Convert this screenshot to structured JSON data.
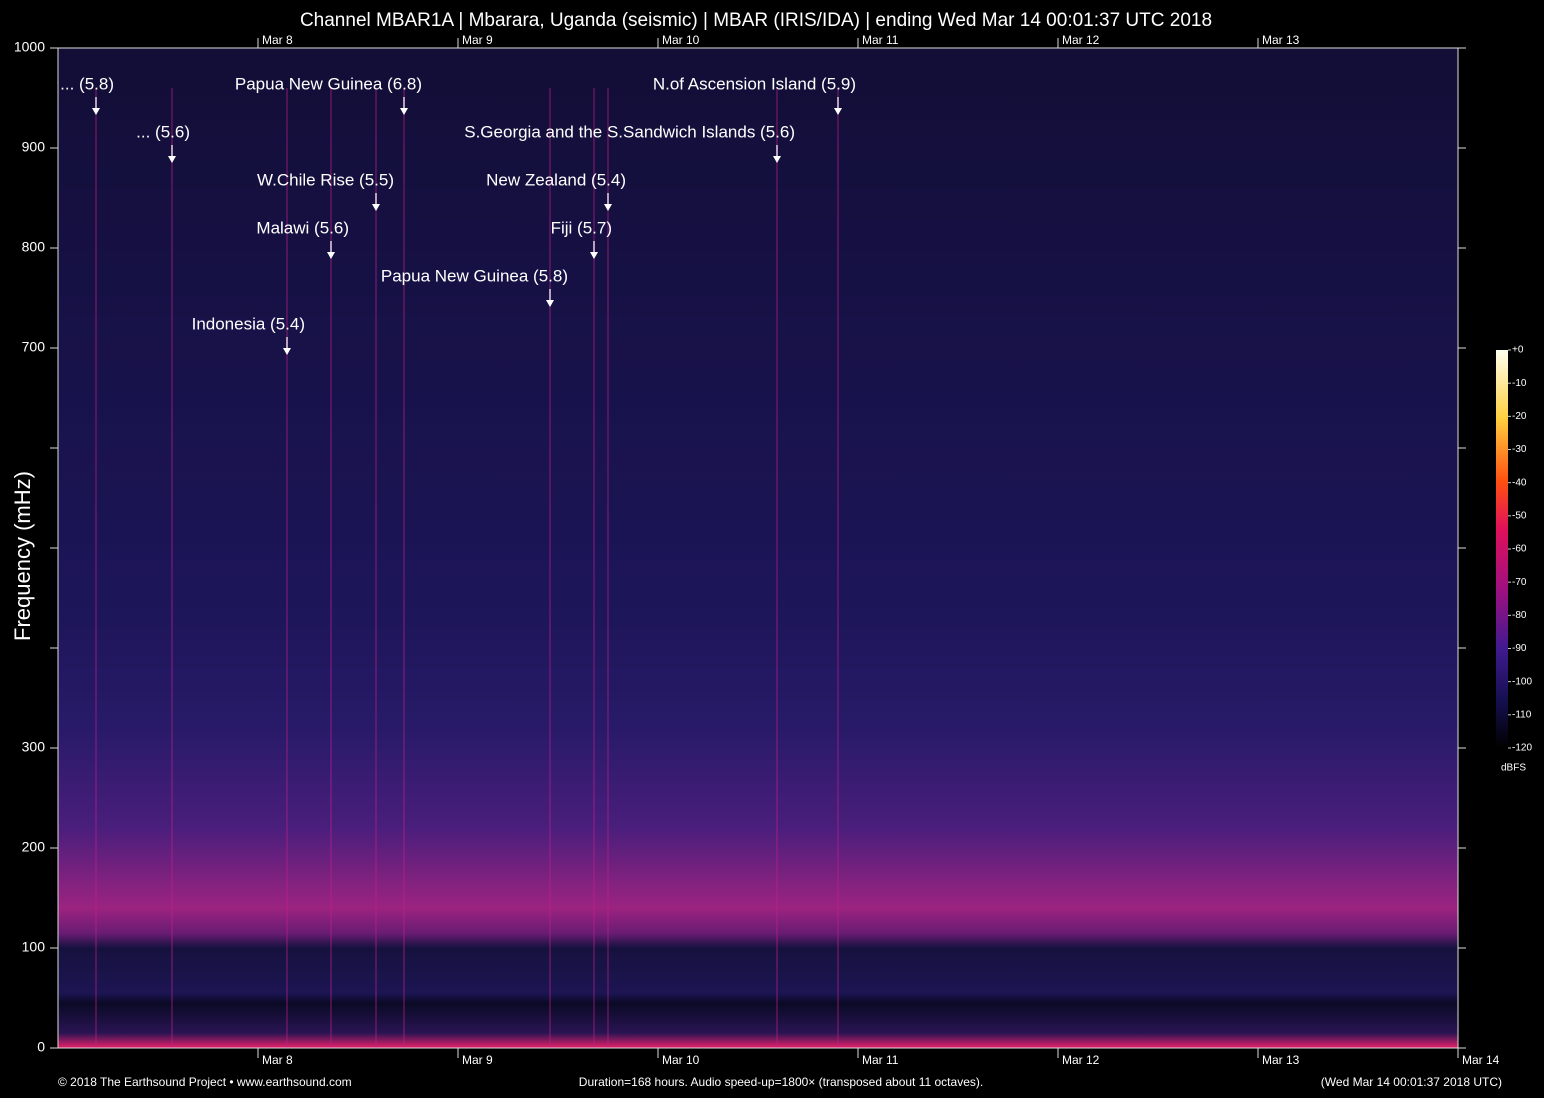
{
  "chart_data": {
    "type": "spectrogram",
    "title": "Channel MBAR1A | Mbarara, Uganda (seismic) | MBAR (IRIS/IDA) | ending Wed Mar 14 00:01:37 UTC 2018",
    "y_label": "Frequency (mHz)",
    "xlim": [
      0,
      168
    ],
    "xticks": [
      {
        "value": 24,
        "label": "Mar  8"
      },
      {
        "value": 48,
        "label": "Mar  9"
      },
      {
        "value": 72,
        "label": "Mar 10"
      },
      {
        "value": 96,
        "label": "Mar 11"
      },
      {
        "value": 120,
        "label": "Mar 12"
      },
      {
        "value": 144,
        "label": "Mar 13"
      },
      {
        "value": 168,
        "label": "Mar 14"
      }
    ],
    "ylim": [
      0,
      1000
    ],
    "yticks": [
      0,
      100,
      200,
      300,
      700,
      800,
      900,
      1000
    ],
    "minor_yticks": [
      400,
      500,
      600
    ],
    "annotations": [
      {
        "text": "... (5.8)",
        "x": 4.56,
        "y": 933
      },
      {
        "text": "... (5.6)",
        "x": 13.68,
        "y": 885
      },
      {
        "text": "Papua New Guinea (6.8)",
        "x": 41.52,
        "y": 933
      },
      {
        "text": "W.Chile Rise (5.5)",
        "x": 38.16,
        "y": 837
      },
      {
        "text": "Malawi (5.6)",
        "x": 32.76,
        "y": 789
      },
      {
        "text": "Indonesia (5.4)",
        "x": 27.48,
        "y": 693
      },
      {
        "text": "N.of Ascension Island (5.9)",
        "x": 93.6,
        "y": 933
      },
      {
        "text": "S.Georgia and the S.Sandwich Islands (5.6)",
        "x": 86.28,
        "y": 885
      },
      {
        "text": "New Zealand (5.4)",
        "x": 66,
        "y": 837
      },
      {
        "text": "Fiji (5.7)",
        "x": 64.32,
        "y": 789
      },
      {
        "text": "Papua New Guinea (5.8)",
        "x": 59.04,
        "y": 741
      }
    ],
    "colorbar": {
      "label": "dBFS",
      "lim": [
        -120,
        0
      ],
      "ticks": [
        {
          "value": 0,
          "label": "+0"
        },
        -10,
        -20,
        -30,
        -40,
        -50,
        -60,
        -70,
        -80,
        -90,
        -100,
        -110,
        -120
      ]
    },
    "footer_left": "© 2018 The Earthsound Project • www.earthsound.com",
    "footer_center": "Duration=168 hours. Audio speed-up=1800× (transposed about 11 octaves).",
    "footer_right": "(Wed Mar 14 00:01:37 2018 UTC)"
  }
}
